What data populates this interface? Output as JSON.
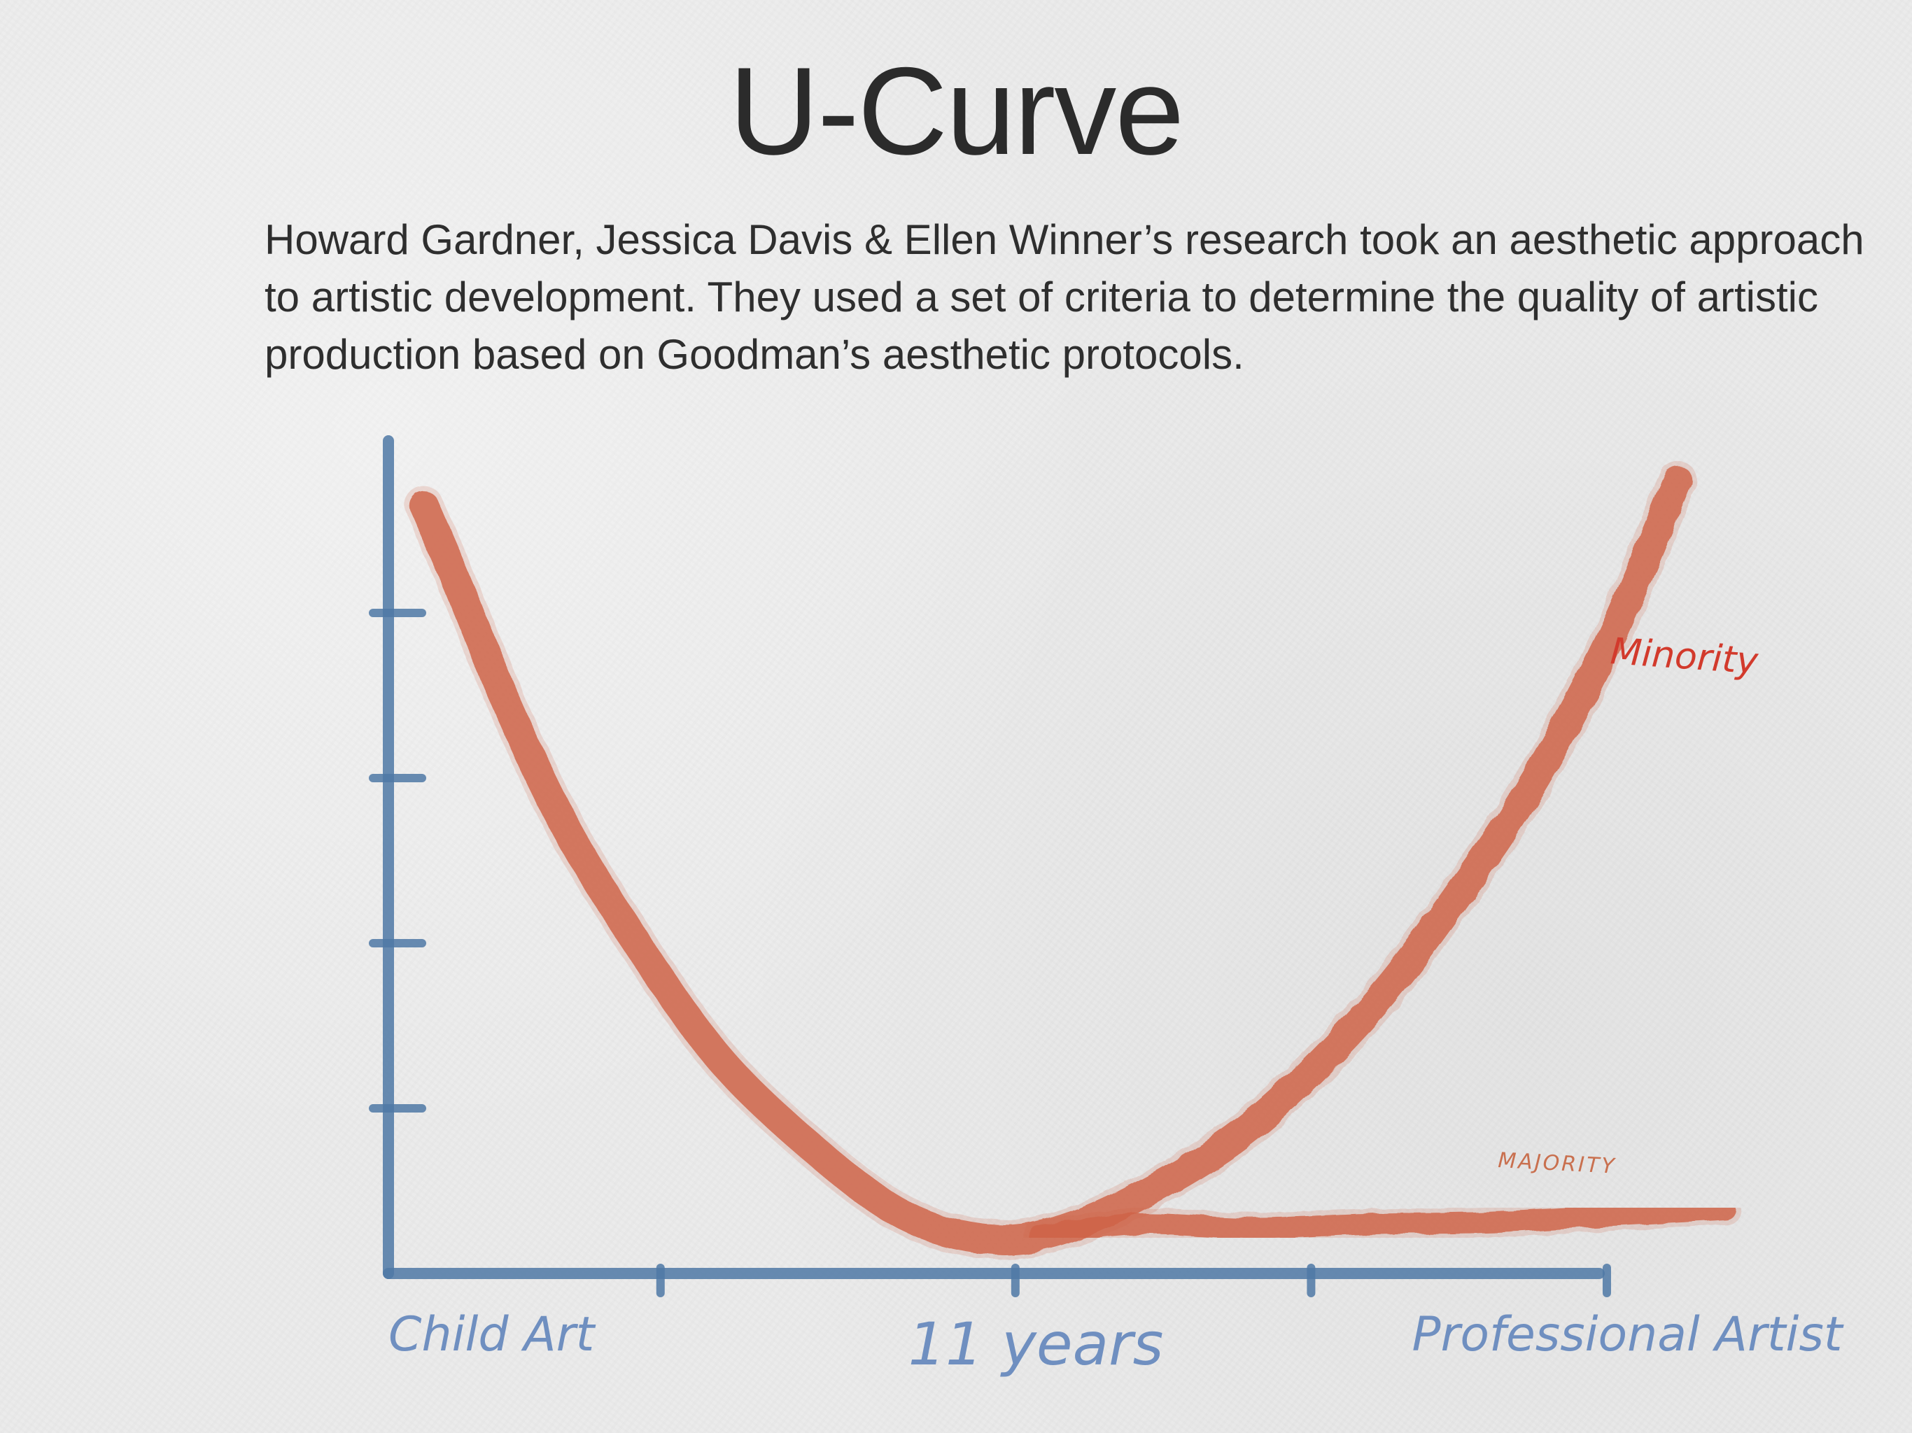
{
  "title": "U-Curve",
  "subtitle": "Howard Gardner, Jessica Davis & Ellen Winner’s research took an aesthetic approach to artistic development. They used a set of criteria to determine the quality of artistic production based on Goodman’s aesthetic protocols.",
  "colors": {
    "axis": "#4f79a6",
    "axis_label": "#6f8fc0",
    "curve": "#cf6347",
    "minority_label": "#d23a2c",
    "majority_label": "#c9704f"
  },
  "chart_data": {
    "type": "line",
    "title": "",
    "xlabel": "",
    "ylabel": "",
    "x_tick_labels": [
      {
        "x": 0,
        "label": "Child Art"
      },
      {
        "x": 5,
        "label": "11 years"
      },
      {
        "x": 10,
        "label": "Professional Artist"
      }
    ],
    "x_tick_marks": [
      2,
      5,
      7.5,
      10
    ],
    "y_tick_marks": [
      2,
      4,
      6,
      8
    ],
    "xlim": [
      -0.3,
      11
    ],
    "ylim": [
      0,
      10
    ],
    "series": [
      {
        "name": "Minority",
        "x": [
          0,
          0.3,
          0.7,
          1.2,
          1.8,
          2.5,
          3.3,
          4.0,
          4.6,
          5.2,
          6.0,
          7.0,
          8.0,
          8.8,
          9.4,
          10.0,
          10.6
        ],
        "y": [
          9.3,
          8.3,
          6.9,
          5.4,
          4.0,
          2.6,
          1.5,
          0.75,
          0.45,
          0.45,
          0.9,
          1.8,
          3.2,
          4.7,
          6.0,
          7.6,
          9.6
        ]
      },
      {
        "name": "Majority",
        "x": [
          5.2,
          6.0,
          7.0,
          8.0,
          9.0,
          10.0,
          11.0
        ],
        "y": [
          0.45,
          0.6,
          0.55,
          0.6,
          0.62,
          0.7,
          0.78
        ]
      }
    ]
  }
}
